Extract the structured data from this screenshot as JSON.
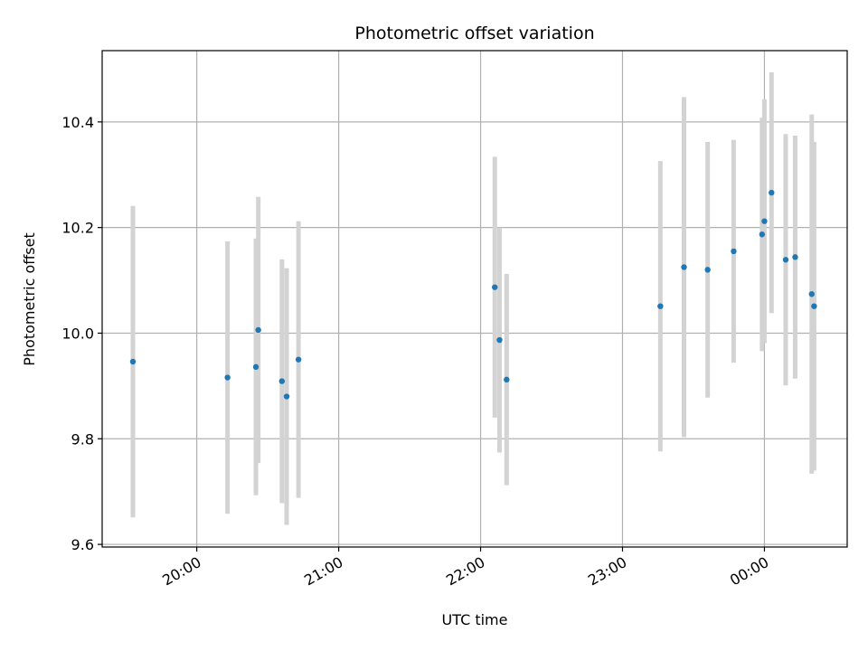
{
  "chart_data": {
    "type": "scatter",
    "title": "Photometric offset variation",
    "xlabel": "UTC time",
    "ylabel": "Photometric offset",
    "x_axis": "time",
    "xlim": [
      "19:20",
      "00:35"
    ],
    "ylim": [
      9.595,
      10.535
    ],
    "x_ticks": [
      "20:00",
      "21:00",
      "22:00",
      "23:00",
      "00:00"
    ],
    "y_ticks": [
      9.6,
      9.8,
      10.0,
      10.2,
      10.4
    ],
    "y_tick_labels": [
      "9.6",
      "9.8",
      "10.0",
      "10.2",
      "10.4"
    ],
    "grid": true,
    "marker_color": "#1f77b4",
    "errorbar_color": "#d3d3d3",
    "points": [
      {
        "x": "19:33",
        "y": 9.946,
        "yerr": 0.295
      },
      {
        "x": "20:13",
        "y": 9.916,
        "yerr": 0.258
      },
      {
        "x": "20:25",
        "y": 9.936,
        "yerr": 0.243
      },
      {
        "x": "20:26",
        "y": 10.006,
        "yerr": 0.252
      },
      {
        "x": "20:36",
        "y": 9.909,
        "yerr": 0.231
      },
      {
        "x": "20:38",
        "y": 9.88,
        "yerr": 0.243
      },
      {
        "x": "20:43",
        "y": 9.95,
        "yerr": 0.262
      },
      {
        "x": "22:06",
        "y": 10.087,
        "yerr": 0.247
      },
      {
        "x": "22:08",
        "y": 9.987,
        "yerr": 0.213
      },
      {
        "x": "22:11",
        "y": 9.912,
        "yerr": 0.2
      },
      {
        "x": "23:16",
        "y": 10.051,
        "yerr": 0.275
      },
      {
        "x": "23:26",
        "y": 10.125,
        "yerr": 0.322
      },
      {
        "x": "23:36",
        "y": 10.12,
        "yerr": 0.242
      },
      {
        "x": "23:47",
        "y": 10.155,
        "yerr": 0.211
      },
      {
        "x": "23:59",
        "y": 10.187,
        "yerr": 0.221
      },
      {
        "x": "00:00",
        "y": 10.212,
        "yerr": 0.231
      },
      {
        "x": "00:03",
        "y": 10.266,
        "yerr": 0.228
      },
      {
        "x": "00:09",
        "y": 10.139,
        "yerr": 0.238
      },
      {
        "x": "00:13",
        "y": 10.144,
        "yerr": 0.23
      },
      {
        "x": "00:20",
        "y": 10.074,
        "yerr": 0.34
      },
      {
        "x": "00:21",
        "y": 10.051,
        "yerr": 0.311
      }
    ]
  }
}
